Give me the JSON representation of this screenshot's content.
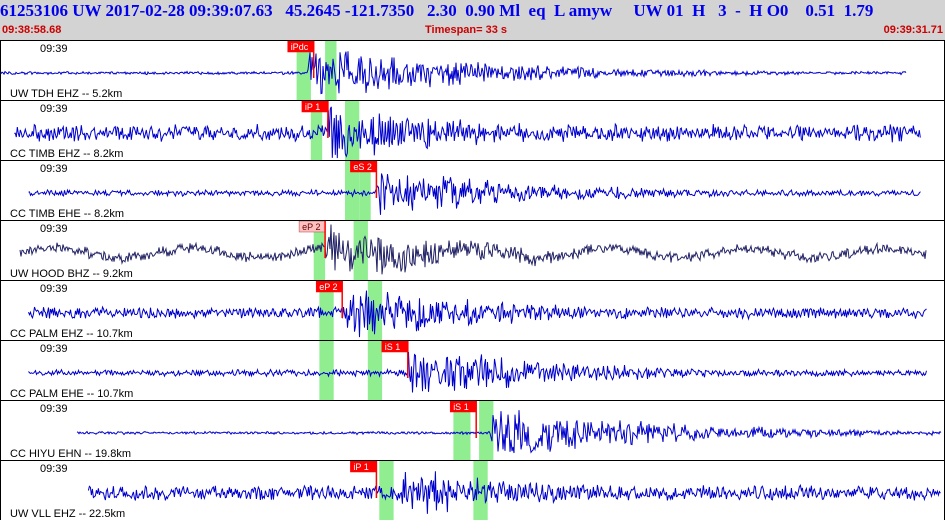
{
  "header": {
    "title": "61253106 UW 2017-02-28 09:39:07.63   45.2645 -121.7350   2.30  0.90 Ml  eq  L amyw     UW 01  H   3  -  H O0    0.51  1.79",
    "start_time": "09:38:58.68",
    "timespan": "Timespan=  33 s",
    "end_time": "09:39:31.71"
  },
  "colors": {
    "trace": "#0000cc",
    "trace_dark": "#222266",
    "window": "#90ee90",
    "pick": "#ff0000",
    "pick_light": "#ffc0c0",
    "frame": "#000000"
  },
  "chart_data": {
    "type": "seismogram",
    "x_range": [
      "09:38:58.68",
      "09:39:31.71"
    ],
    "duration_s": 33,
    "channels": [
      {
        "label": "UW TDH EHZ -- 5.2km",
        "time_tick": "09:39",
        "start_s": 0.0,
        "end_s": 31.8,
        "onset_s": 10.8,
        "amplitude": 0.85,
        "noise": 0.05,
        "color": "trace",
        "windows": [
          [
            10.4,
            10.9
          ],
          [
            11.4,
            11.8
          ]
        ],
        "picks": [
          {
            "label": "iPdc",
            "time_s": 11.0,
            "style": "red"
          }
        ]
      },
      {
        "label": "CC TIMB EHZ -- 8.2km",
        "time_tick": "09:39",
        "start_s": 0.5,
        "end_s": 32.3,
        "onset_s": 11.5,
        "amplitude": 0.8,
        "noise": 0.3,
        "color": "trace",
        "windows": [
          [
            10.9,
            11.3
          ],
          [
            12.1,
            12.6
          ]
        ],
        "picks": [
          {
            "label": "iP 1",
            "time_s": 11.5,
            "style": "red"
          }
        ]
      },
      {
        "label": "CC TIMB EHE -- 8.2km",
        "time_tick": "09:39",
        "start_s": 1.0,
        "end_s": 32.3,
        "onset_s": 13.2,
        "amplitude": 0.7,
        "noise": 0.12,
        "color": "trace",
        "windows": [
          [
            12.1,
            12.6
          ],
          [
            12.6,
            13.0
          ]
        ],
        "picks": [
          {
            "label": "eS 2",
            "time_s": 13.2,
            "style": "red"
          }
        ]
      },
      {
        "label": "UW HOOD BHZ -- 9.2km",
        "time_tick": "09:39",
        "start_s": 0.7,
        "end_s": 32.5,
        "onset_s": 11.4,
        "amplitude": 0.75,
        "noise": 0.2,
        "color": "trace_dark",
        "windows": [
          [
            11.0,
            11.4
          ],
          [
            12.4,
            12.9
          ]
        ],
        "picks": [
          {
            "label": "eP 2",
            "time_s": 11.4,
            "style": "light"
          }
        ]
      },
      {
        "label": "CC PALM EHZ -- 10.7km",
        "time_tick": "09:39",
        "start_s": 1.0,
        "end_s": 32.5,
        "onset_s": 12.0,
        "amplitude": 0.8,
        "noise": 0.2,
        "color": "trace",
        "windows": [
          [
            11.2,
            11.7
          ],
          [
            12.9,
            13.4
          ]
        ],
        "picks": [
          {
            "label": "eP 2",
            "time_s": 12.0,
            "style": "red"
          }
        ]
      },
      {
        "label": "CC PALM EHE -- 10.7km",
        "time_tick": "09:39",
        "start_s": 1.0,
        "end_s": 32.5,
        "onset_s": 14.3,
        "amplitude": 0.75,
        "noise": 0.12,
        "color": "trace",
        "windows": [
          [
            11.2,
            11.7
          ],
          [
            12.9,
            13.4
          ]
        ],
        "picks": [
          {
            "label": "iS 1",
            "time_s": 14.3,
            "style": "red"
          }
        ]
      },
      {
        "label": "CC HIYU EHN -- 19.8km",
        "time_tick": "09:39",
        "start_s": 2.7,
        "end_s": 34.2,
        "onset_s": 17.2,
        "amplitude": 0.8,
        "noise": 0.05,
        "color": "trace",
        "windows": [
          [
            15.9,
            16.5
          ],
          [
            16.8,
            17.3
          ]
        ],
        "picks": [
          {
            "label": "iS 1",
            "time_s": 16.7,
            "style": "red"
          }
        ]
      },
      {
        "label": "UW VLL EHZ -- 22.5km",
        "time_tick": "09:39",
        "start_s": 3.1,
        "end_s": 34.5,
        "onset_s": 14.1,
        "amplitude": 0.7,
        "noise": 0.3,
        "color": "trace",
        "windows": [
          [
            13.3,
            13.8
          ],
          [
            16.6,
            17.1
          ]
        ],
        "picks": [
          {
            "label": "iP 1",
            "time_s": 13.2,
            "style": "red"
          }
        ]
      }
    ]
  }
}
